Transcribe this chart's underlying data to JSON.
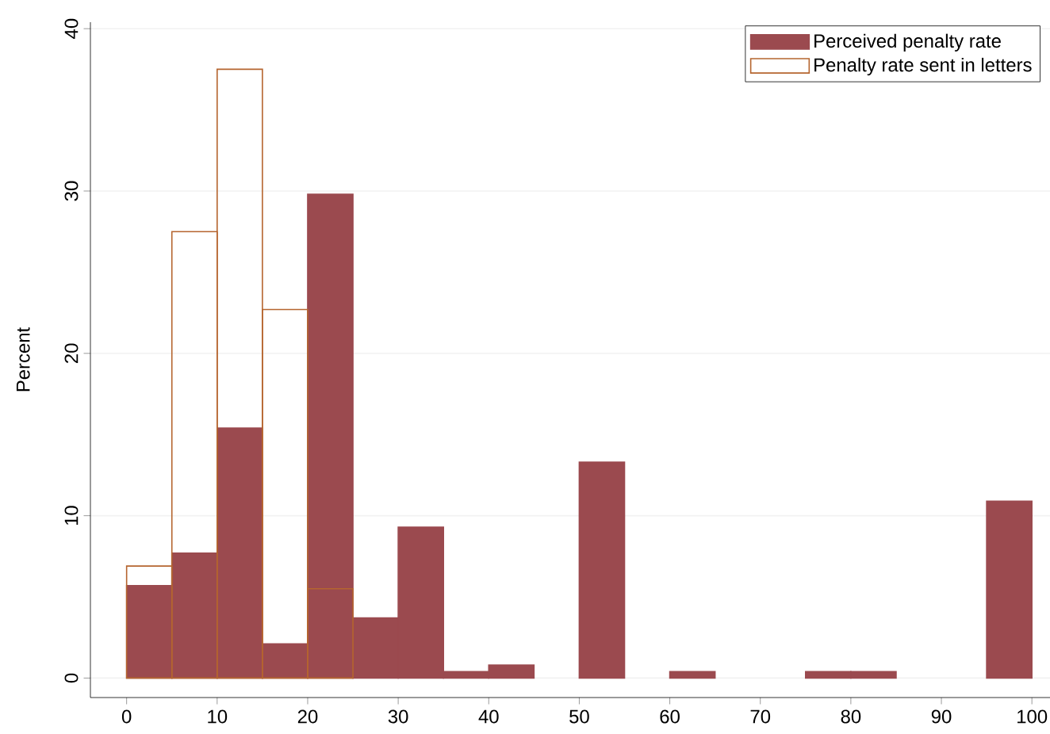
{
  "chart_data": {
    "type": "histogram",
    "ylabel": "Percent",
    "bins": [
      0,
      5,
      10,
      15,
      20,
      25,
      30,
      35,
      40,
      45,
      50,
      55,
      60,
      65,
      70,
      75,
      80,
      85,
      90,
      95,
      100
    ],
    "series": [
      {
        "name": "Perceived penalty rate",
        "color": "#9b4a4f",
        "values": [
          5.7,
          7.7,
          15.4,
          2.1,
          29.8,
          3.7,
          9.3,
          0.4,
          0.8,
          0,
          13.3,
          0,
          0.4,
          0,
          0,
          0.4,
          0.4,
          0,
          0,
          10.9
        ]
      },
      {
        "name": "Penalty rate sent in letters",
        "color": "#b5652f",
        "values": [
          6.9,
          27.5,
          37.5,
          22.7,
          5.5,
          null,
          null,
          null,
          null,
          null,
          null,
          null,
          null,
          null,
          null,
          null,
          null,
          null,
          null,
          null
        ]
      }
    ],
    "xlim": [
      -4,
      102
    ],
    "ylim": [
      -1.2,
      40.4
    ],
    "xticks": [
      0,
      10,
      20,
      30,
      40,
      50,
      60,
      70,
      80,
      90,
      100
    ],
    "yticks": [
      0,
      10,
      20,
      30,
      40
    ],
    "grid": "y",
    "legend": "top right"
  }
}
